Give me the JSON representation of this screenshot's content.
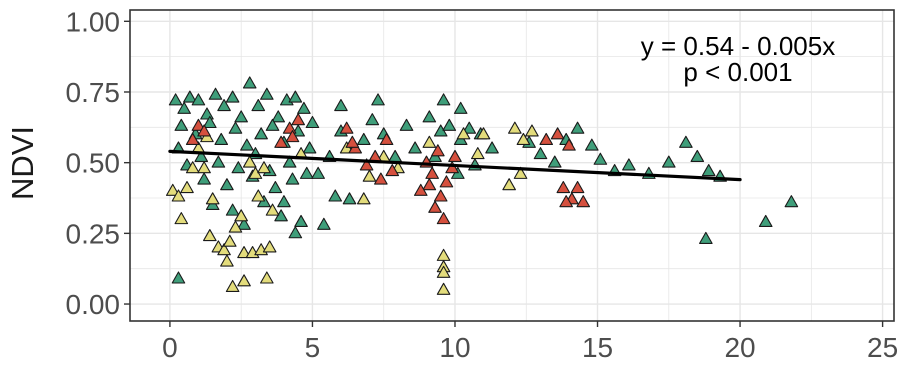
{
  "chart_data": {
    "type": "scatter",
    "title": "",
    "xlabel": "",
    "ylabel": "NDVI",
    "xlim": [
      -1.4,
      25.4
    ],
    "ylim": [
      -0.06,
      1.04
    ],
    "xticks": [
      0,
      5,
      10,
      15,
      20,
      25
    ],
    "xtick_labels": [
      "0",
      "5",
      "10",
      "15",
      "20",
      "25"
    ],
    "yticks": [
      0.0,
      0.25,
      0.5,
      0.75,
      1.0
    ],
    "ytick_labels": [
      "0.00",
      "0.25",
      "0.50",
      "0.75",
      "1.00"
    ],
    "grid": true,
    "legend": "none",
    "marker": "triangle",
    "colors": {
      "green": "#3f9e7a",
      "yellow": "#e3dc7c",
      "red": "#d5503e",
      "point_outline": "#1a1a1a",
      "grid": "#e6e6e6",
      "panel_border": "#333333",
      "fit_line": "#000000"
    },
    "fit_line": {
      "intercept": 0.54,
      "slope": -0.005,
      "x_range": [
        0,
        20
      ]
    },
    "annotation": {
      "equation": "y = 0.54 - 0.005x",
      "p_value": "p < 0.001"
    },
    "series": [
      {
        "color_key": "green",
        "points": [
          [
            0.2,
            0.72
          ],
          [
            0.5,
            0.69
          ],
          [
            0.7,
            0.73
          ],
          [
            1.0,
            0.72
          ],
          [
            1.3,
            0.67
          ],
          [
            1.6,
            0.74
          ],
          [
            1.9,
            0.7
          ],
          [
            2.2,
            0.73
          ],
          [
            2.5,
            0.66
          ],
          [
            2.8,
            0.78
          ],
          [
            3.1,
            0.7
          ],
          [
            3.4,
            0.74
          ],
          [
            3.8,
            0.66
          ],
          [
            4.1,
            0.72
          ],
          [
            4.4,
            0.73
          ],
          [
            4.7,
            0.69
          ],
          [
            0.4,
            0.63
          ],
          [
            0.9,
            0.6
          ],
          [
            1.4,
            0.64
          ],
          [
            1.8,
            0.58
          ],
          [
            2.3,
            0.62
          ],
          [
            2.7,
            0.56
          ],
          [
            3.2,
            0.6
          ],
          [
            3.6,
            0.63
          ],
          [
            4.0,
            0.57
          ],
          [
            4.5,
            0.61
          ],
          [
            4.9,
            0.55
          ],
          [
            1.1,
            0.52
          ],
          [
            1.7,
            0.5
          ],
          [
            2.4,
            0.48
          ],
          [
            3.0,
            0.53
          ],
          [
            3.5,
            0.47
          ],
          [
            4.2,
            0.5
          ],
          [
            4.8,
            0.46
          ],
          [
            0.3,
            0.55
          ],
          [
            0.6,
            0.49
          ],
          [
            1.2,
            0.44
          ],
          [
            2.0,
            0.42
          ],
          [
            2.9,
            0.45
          ],
          [
            3.7,
            0.41
          ],
          [
            4.3,
            0.44
          ],
          [
            1.5,
            0.35
          ],
          [
            2.2,
            0.33
          ],
          [
            3.3,
            0.36
          ],
          [
            3.9,
            0.31
          ],
          [
            4.6,
            0.29
          ],
          [
            4.4,
            0.25
          ],
          [
            5.2,
            0.46
          ],
          [
            5.6,
            0.52
          ],
          [
            6.0,
            0.61
          ],
          [
            6.4,
            0.55
          ],
          [
            6.8,
            0.58
          ],
          [
            7.1,
            0.65
          ],
          [
            7.5,
            0.6
          ],
          [
            7.9,
            0.52
          ],
          [
            8.3,
            0.63
          ],
          [
            5.8,
            0.38
          ],
          [
            6.3,
            0.37
          ],
          [
            5.4,
            0.28
          ],
          [
            7.3,
            0.72
          ],
          [
            9.1,
            0.66
          ],
          [
            9.5,
            0.61
          ],
          [
            9.8,
            0.63
          ],
          [
            10.2,
            0.58
          ],
          [
            10.5,
            0.62
          ],
          [
            10.9,
            0.6
          ],
          [
            9.3,
            0.52
          ],
          [
            10.1,
            0.46
          ],
          [
            10.7,
            0.49
          ],
          [
            11.3,
            0.55
          ],
          [
            12.6,
            0.57
          ],
          [
            13.0,
            0.53
          ],
          [
            13.5,
            0.5
          ],
          [
            13.9,
            0.58
          ],
          [
            14.3,
            0.62
          ],
          [
            14.8,
            0.56
          ],
          [
            15.1,
            0.51
          ],
          [
            15.6,
            0.47
          ],
          [
            16.1,
            0.49
          ],
          [
            16.8,
            0.46
          ],
          [
            17.5,
            0.5
          ],
          [
            18.1,
            0.57
          ],
          [
            18.5,
            0.52
          ],
          [
            18.9,
            0.47
          ],
          [
            19.3,
            0.45
          ],
          [
            18.8,
            0.23
          ],
          [
            20.9,
            0.29
          ],
          [
            21.8,
            0.36
          ],
          [
            0.3,
            0.09
          ],
          [
            10.2,
            0.69
          ],
          [
            9.6,
            0.72
          ],
          [
            6.0,
            0.7
          ],
          [
            8.6,
            0.55
          ],
          [
            5.0,
            0.64
          ],
          [
            4.0,
            0.36
          ],
          [
            2.6,
            0.28
          ]
        ]
      },
      {
        "color_key": "yellow",
        "points": [
          [
            0.1,
            0.4
          ],
          [
            0.3,
            0.38
          ],
          [
            0.6,
            0.41
          ],
          [
            0.4,
            0.3
          ],
          [
            1.2,
            0.48
          ],
          [
            1.5,
            0.37
          ],
          [
            1.7,
            0.2
          ],
          [
            1.9,
            0.19
          ],
          [
            2.1,
            0.22
          ],
          [
            2.3,
            0.27
          ],
          [
            2.0,
            0.15
          ],
          [
            2.6,
            0.18
          ],
          [
            2.9,
            0.18
          ],
          [
            3.2,
            0.19
          ],
          [
            3.5,
            0.2
          ],
          [
            2.5,
            0.31
          ],
          [
            2.2,
            0.06
          ],
          [
            2.6,
            0.08
          ],
          [
            3.4,
            0.09
          ],
          [
            3.1,
            0.38
          ],
          [
            3.6,
            0.33
          ],
          [
            2.8,
            0.5
          ],
          [
            3.0,
            0.46
          ],
          [
            3.3,
            0.48
          ],
          [
            1.4,
            0.24
          ],
          [
            1.0,
            0.55
          ],
          [
            1.3,
            0.59
          ],
          [
            0.8,
            0.48
          ],
          [
            4.6,
            0.53
          ],
          [
            6.2,
            0.55
          ],
          [
            7.0,
            0.45
          ],
          [
            7.5,
            0.52
          ],
          [
            6.8,
            0.37
          ],
          [
            8.0,
            0.48
          ],
          [
            9.6,
            0.17
          ],
          [
            9.6,
            0.13
          ],
          [
            9.6,
            0.11
          ],
          [
            9.6,
            0.05
          ],
          [
            10.3,
            0.6
          ],
          [
            11.0,
            0.6
          ],
          [
            10.8,
            0.53
          ],
          [
            12.1,
            0.62
          ],
          [
            12.4,
            0.58
          ],
          [
            12.7,
            0.61
          ],
          [
            12.3,
            0.46
          ],
          [
            11.9,
            0.42
          ],
          [
            9.1,
            0.57
          ]
        ]
      },
      {
        "color_key": "red",
        "points": [
          [
            0.8,
            0.58
          ],
          [
            1.0,
            0.63
          ],
          [
            1.2,
            0.61
          ],
          [
            3.9,
            0.57
          ],
          [
            4.2,
            0.62
          ],
          [
            4.5,
            0.65
          ],
          [
            4.3,
            0.59
          ],
          [
            6.2,
            0.62
          ],
          [
            6.5,
            0.55
          ],
          [
            6.9,
            0.49
          ],
          [
            7.2,
            0.52
          ],
          [
            7.4,
            0.44
          ],
          [
            7.8,
            0.47
          ],
          [
            7.6,
            0.58
          ],
          [
            6.4,
            0.57
          ],
          [
            9.0,
            0.5
          ],
          [
            9.2,
            0.46
          ],
          [
            9.4,
            0.54
          ],
          [
            9.1,
            0.42
          ],
          [
            9.5,
            0.38
          ],
          [
            9.3,
            0.34
          ],
          [
            9.7,
            0.43
          ],
          [
            9.9,
            0.48
          ],
          [
            10.0,
            0.52
          ],
          [
            9.6,
            0.3
          ],
          [
            8.8,
            0.4
          ],
          [
            13.2,
            0.58
          ],
          [
            13.6,
            0.6
          ],
          [
            14.0,
            0.56
          ],
          [
            13.8,
            0.41
          ],
          [
            14.1,
            0.37
          ],
          [
            14.3,
            0.41
          ],
          [
            14.5,
            0.36
          ],
          [
            13.9,
            0.36
          ]
        ]
      }
    ]
  }
}
